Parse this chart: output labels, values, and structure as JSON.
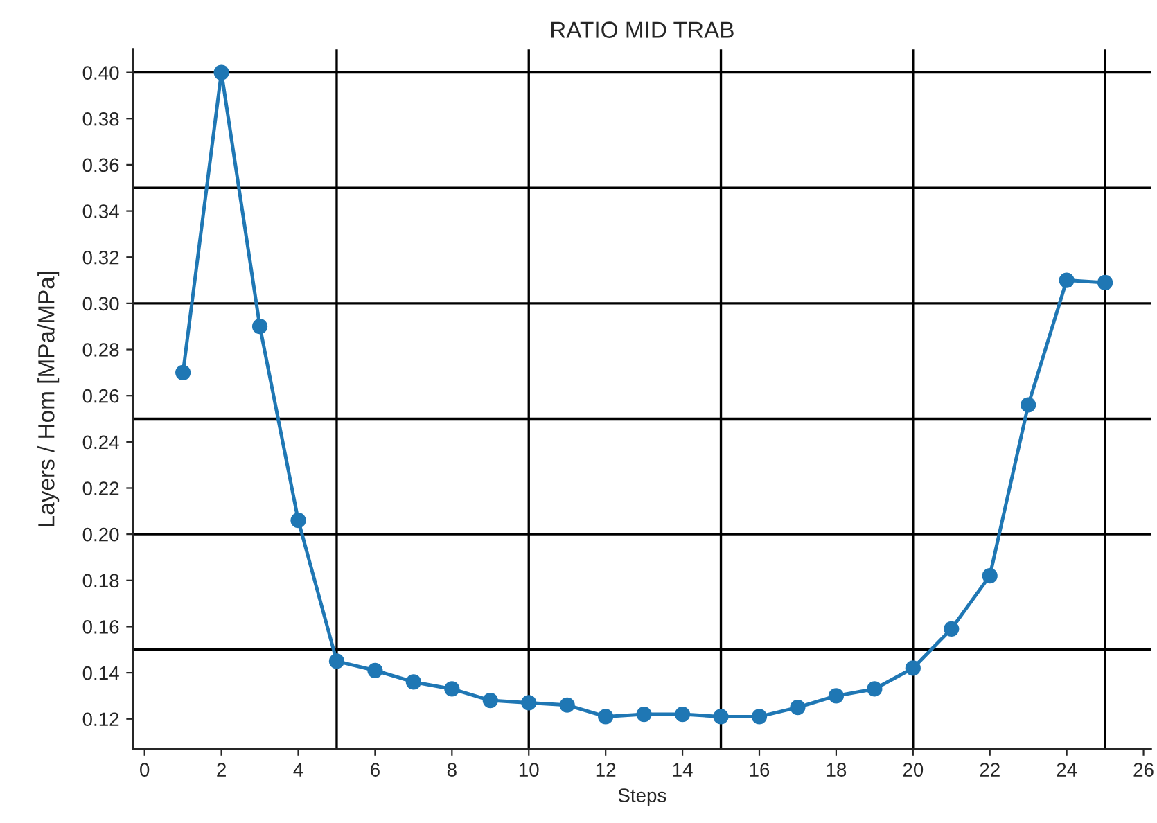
{
  "chart_data": {
    "type": "line",
    "title": "RATIO MID TRAB",
    "xlabel": "Steps",
    "ylabel": "Layers / Hom [MPa/MPa]",
    "x": [
      1,
      2,
      3,
      4,
      5,
      6,
      7,
      8,
      9,
      10,
      11,
      12,
      13,
      14,
      15,
      16,
      17,
      18,
      19,
      20,
      21,
      22,
      23,
      24,
      25
    ],
    "series": [
      {
        "color": "#1f77b4",
        "values": [
          0.27,
          0.4,
          0.29,
          0.206,
          0.145,
          0.141,
          0.136,
          0.133,
          0.128,
          0.127,
          0.126,
          0.121,
          0.122,
          0.122,
          0.121,
          0.121,
          0.125,
          0.13,
          0.133,
          0.142,
          0.159,
          0.182,
          0.256,
          0.31,
          0.309
        ]
      }
    ],
    "xlim": [
      -0.3,
      26.2
    ],
    "ylim": [
      0.107,
      0.41
    ],
    "xticks": [
      0,
      2,
      4,
      6,
      8,
      10,
      12,
      14,
      16,
      18,
      20,
      22,
      24,
      26
    ],
    "yticks": [
      {
        "value": 0.12,
        "label": "0.12"
      },
      {
        "value": 0.14,
        "label": "0.14"
      },
      {
        "value": 0.16,
        "label": "0.16"
      },
      {
        "value": 0.18,
        "label": "0.18"
      },
      {
        "value": 0.2,
        "label": "0.20"
      },
      {
        "value": 0.22,
        "label": "0.22"
      },
      {
        "value": 0.24,
        "label": "0.24"
      },
      {
        "value": 0.26,
        "label": "0.26"
      },
      {
        "value": 0.28,
        "label": "0.28"
      },
      {
        "value": 0.3,
        "label": "0.30"
      },
      {
        "value": 0.32,
        "label": "0.32"
      },
      {
        "value": 0.34,
        "label": "0.34"
      },
      {
        "value": 0.36,
        "label": "0.36"
      },
      {
        "value": 0.38,
        "label": "0.38"
      },
      {
        "value": 0.4,
        "label": "0.40"
      }
    ],
    "ref_lines": [
      {
        "axis": "x",
        "value": 5,
        "color": "#000000"
      },
      {
        "axis": "x",
        "value": 10,
        "color": "#000000"
      },
      {
        "axis": "x",
        "value": 15,
        "color": "#000000"
      },
      {
        "axis": "x",
        "value": 20,
        "color": "#000000"
      },
      {
        "axis": "x",
        "value": 25,
        "color": "#000000"
      },
      {
        "axis": "y",
        "value": 0.15,
        "color": "#000000"
      },
      {
        "axis": "y",
        "value": 0.2,
        "color": "#000000"
      },
      {
        "axis": "y",
        "value": 0.25,
        "color": "#000000"
      },
      {
        "axis": "y",
        "value": 0.3,
        "color": "#000000"
      },
      {
        "axis": "y",
        "value": 0.35,
        "color": "#000000"
      },
      {
        "axis": "y",
        "value": 0.4,
        "color": "#000000"
      }
    ],
    "marker": "circle",
    "line_style": "solid"
  }
}
